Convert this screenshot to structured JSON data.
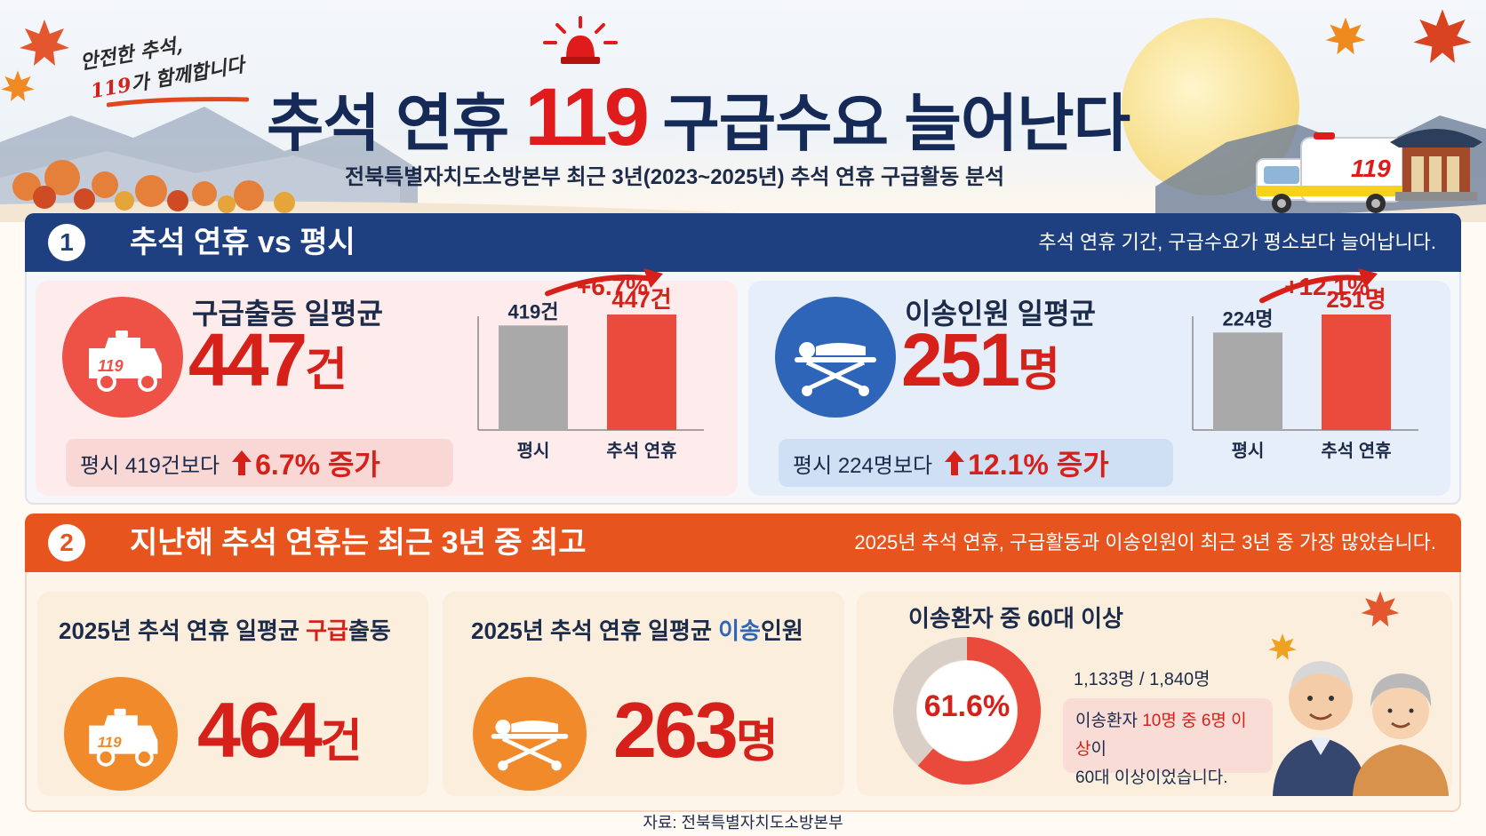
{
  "header": {
    "slogan_line1": "안전한 추석,",
    "slogan_line2_red": "119",
    "slogan_line2_rest": "가 함께합니다",
    "title_before": "추석 연휴 ",
    "title_number": "119",
    "title_after": " 구급수요 늘어난다",
    "subtitle": "전북특별자치도소방본부 최근 3년(2023~2025년) 추석 연휴 구급활동 분석",
    "ambulance_text": "119"
  },
  "section1": {
    "number": "1",
    "title": "추석 연휴 vs 평시",
    "note": "추석 연휴 기간, 구급수요가 평소보다 늘어납니다.",
    "dispatch": {
      "icon_text": "119",
      "label": "구급출동 일평균",
      "value": "447",
      "unit": "건",
      "compare_text": "평시 419건보다",
      "compare_pct": "6.7% 증가",
      "chart": {
        "change": "+6.7%",
        "bars": [
          {
            "category": "평시",
            "value": 419,
            "value_label": "419건"
          },
          {
            "category": "추석 연휴",
            "value": 447,
            "value_label": "447건"
          }
        ]
      }
    },
    "transport": {
      "label": "이송인원 일평균",
      "value": "251",
      "unit": "명",
      "compare_text": "평시 224명보다",
      "compare_pct": "12.1% 증가",
      "chart": {
        "change": "+12.1%",
        "bars": [
          {
            "category": "평시",
            "value": 224,
            "value_label": "224명"
          },
          {
            "category": "추석 연휴",
            "value": 251,
            "value_label": "251명"
          }
        ]
      }
    }
  },
  "section2": {
    "number": "2",
    "title": "지난해 추석 연휴는 최근 3년 중 최고",
    "note": "2025년 추석 연휴, 구급활동과 이송인원이 최근 3년 중 가장 많았습니다.",
    "dispatch": {
      "title_before": "2025년 추석 연휴 일평균 ",
      "title_highlight": "구급",
      "title_after": "출동",
      "icon_text": "119",
      "value": "464",
      "unit": "건"
    },
    "transport": {
      "title_before": "2025년 추석 연휴 일평균 ",
      "title_highlight": "이송",
      "title_after": "인원",
      "value": "263",
      "unit": "명"
    },
    "elderly": {
      "title": "이송환자 중 60대 이상",
      "percent_label": "61.6%",
      "percent": 61.6,
      "ratio": "1,133명 / 1,840명",
      "note_before": "이송환자 ",
      "note_red": "10명 중 6명 이상",
      "note_after": "이",
      "note_line2": "60대 이상이었습니다."
    }
  },
  "source": "자료: 전북특별자치도소방본부",
  "colors": {
    "navy": "#1e3f80",
    "orange": "#e8541e",
    "red": "#d6211a",
    "bar_gray": "#a9a9a9",
    "bar_red": "#ea4b3c"
  }
}
